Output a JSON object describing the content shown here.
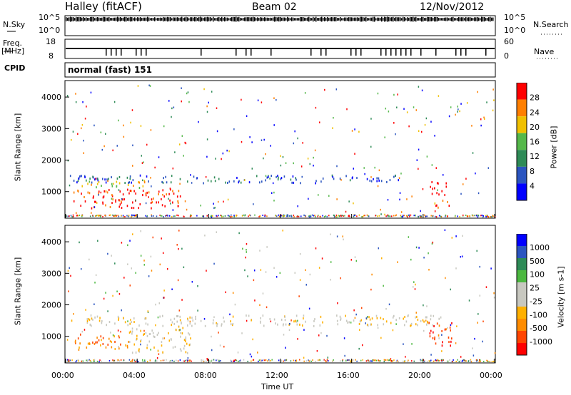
{
  "header": {
    "title": "Halley (fitACF)",
    "beam": "Beam 02",
    "date": "12/Nov/2012"
  },
  "params": {
    "nsky_label": "N.Sky",
    "nsky_ticks": [
      "10^5",
      "10^0"
    ],
    "nsearch_label": "N.Search",
    "nsearch_ticks": [
      "10^5",
      "10^0"
    ],
    "freq_label_line1": "Freq.",
    "freq_label_line2": "[MHz]",
    "freq_ticks": [
      "18",
      "8"
    ],
    "nave_label": "Nave",
    "nave_ticks": [
      "60",
      "0"
    ],
    "cpid_label": "CPID",
    "cpid_value": "normal (fast) 151"
  },
  "chart_data": [
    {
      "type": "heatmap",
      "name": "power",
      "ylabel": "Slant Range [km]",
      "yticks": [
        "4000",
        "3000",
        "2000",
        "1000"
      ],
      "ylim": [
        180,
        4500
      ],
      "xlim": [
        0,
        24
      ],
      "colorbar_label": "Power [dB]",
      "colorbar_ticks": [
        "28",
        "24",
        "20",
        "16",
        "12",
        "8",
        "4"
      ],
      "colors": [
        "#0000ff",
        "#2b55c0",
        "#2e8b57",
        "#55b84a",
        "#f0c000",
        "#ff7f00",
        "#ff0000"
      ],
      "echo_regions": [
        {
          "t0": 0.4,
          "t1": 6.5,
          "r0": 500,
          "r1": 1100,
          "level": 6
        },
        {
          "t0": 0.8,
          "t1": 4.5,
          "r0": 1150,
          "r1": 1400,
          "level": 4
        },
        {
          "t0": 0.2,
          "t1": 19,
          "r0": 1300,
          "r1": 1550,
          "level": 1
        },
        {
          "t0": 20.3,
          "t1": 21.3,
          "r0": 900,
          "r1": 1400,
          "level": 6
        },
        {
          "t0": 20.6,
          "t1": 21.5,
          "r0": 500,
          "r1": 800,
          "level": 5
        }
      ]
    },
    {
      "type": "heatmap",
      "name": "velocity",
      "ylabel": "Slant Range [km]",
      "yticks": [
        "4000",
        "3000",
        "2000",
        "1000"
      ],
      "ylim": [
        180,
        4500
      ],
      "xlim": [
        0,
        24
      ],
      "colorbar_label": "Velocity [m s-1]",
      "colorbar_ticks": [
        "1000",
        "500",
        "100",
        "25",
        "-25",
        "-100",
        "-500",
        "-1000"
      ],
      "colors": [
        "#ff0000",
        "#ff4500",
        "#ff8c00",
        "#ffb000",
        "#c8c8c0",
        "#c8c8c0",
        "#4cb840",
        "#2e8b57",
        "#2b55c0",
        "#0000ff"
      ],
      "echo_regions": [
        {
          "t0": 0.5,
          "t1": 3.5,
          "r0": 600,
          "r1": 1100,
          "level": 2
        },
        {
          "t0": 3.5,
          "t1": 7,
          "r0": 500,
          "r1": 1300,
          "level": 4
        },
        {
          "t0": 0.2,
          "t1": 21,
          "r0": 1350,
          "r1": 1700,
          "level": 4
        },
        {
          "t0": 20.3,
          "t1": 21.6,
          "r0": 700,
          "r1": 1500,
          "level": 1
        }
      ],
      "xticks": [
        "00:00",
        "04:00",
        "08:00",
        "12:00",
        "16:00",
        "20:00",
        "00:00"
      ],
      "xlabel": "Time UT"
    }
  ]
}
